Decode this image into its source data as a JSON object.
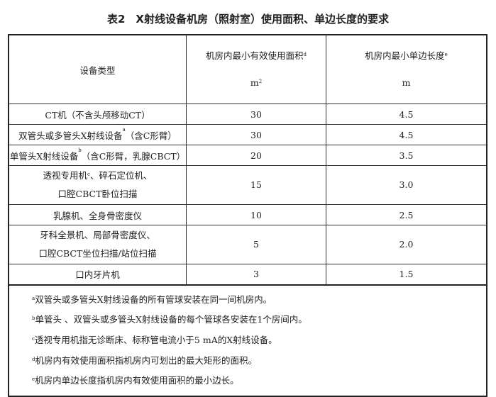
{
  "title": "表2　X射线设备机房（照射室）使用面积、单边长度的要求",
  "header": {
    "col1": "设备类型",
    "col2": "机房内最小有效使用面积",
    "col2_sup": "d",
    "col2_unit": "m",
    "col2_unit_sup": "2",
    "col3": "机房内最小单边长度",
    "col3_sup": "e",
    "col3_unit": "m"
  },
  "rows": [
    {
      "type": [
        "CT机（不含头颅移动CT）"
      ],
      "sup": "",
      "area": "30",
      "length": "4.5"
    },
    {
      "type": [
        "双管头或多管头X射线设备",
        "（含C形臂）"
      ],
      "sup": "a",
      "area": "30",
      "length": "4.5"
    },
    {
      "type": [
        "单管头X射线设备",
        "（含C形臂，乳腺CBCT）"
      ],
      "sup": "b",
      "area": "20",
      "length": "3.5"
    },
    {
      "type": [
        "透视专用机",
        "、碎石定位机、",
        "口腔CBCT卧位扫描"
      ],
      "sup": "c",
      "area": "15",
      "length": "3.0"
    },
    {
      "type": [
        "乳腺机、全身骨密度仪"
      ],
      "sup": "",
      "area": "10",
      "length": "2.5"
    },
    {
      "type": [
        "牙科全景机、局部骨密度仪、",
        "口腔CBCT坐位扫描/站位扫描"
      ],
      "sup": "",
      "area": "5",
      "length": "2.0"
    },
    {
      "type": [
        "口内牙片机"
      ],
      "sup": "",
      "area": "3",
      "length": "1.5"
    }
  ],
  "footnotes": [
    {
      "mark": "a",
      "text": "双管头或多管头X射线设备的所有管球安装在同一间机房内。"
    },
    {
      "mark": "b",
      "text": "单管头 、双管头或多管头X射线设备的每个管球各安装在1个房间内。"
    },
    {
      "mark": "c",
      "text": "透视专用机指无诊断床、标称管电流小于5 mA的X射线设备。"
    },
    {
      "mark": "d",
      "text": "机房内有效使用面积指机房内可划出的最大矩形的面积。"
    },
    {
      "mark": "e",
      "text": "机房内单边长度指机房内有效使用面积的最小边长。"
    }
  ]
}
